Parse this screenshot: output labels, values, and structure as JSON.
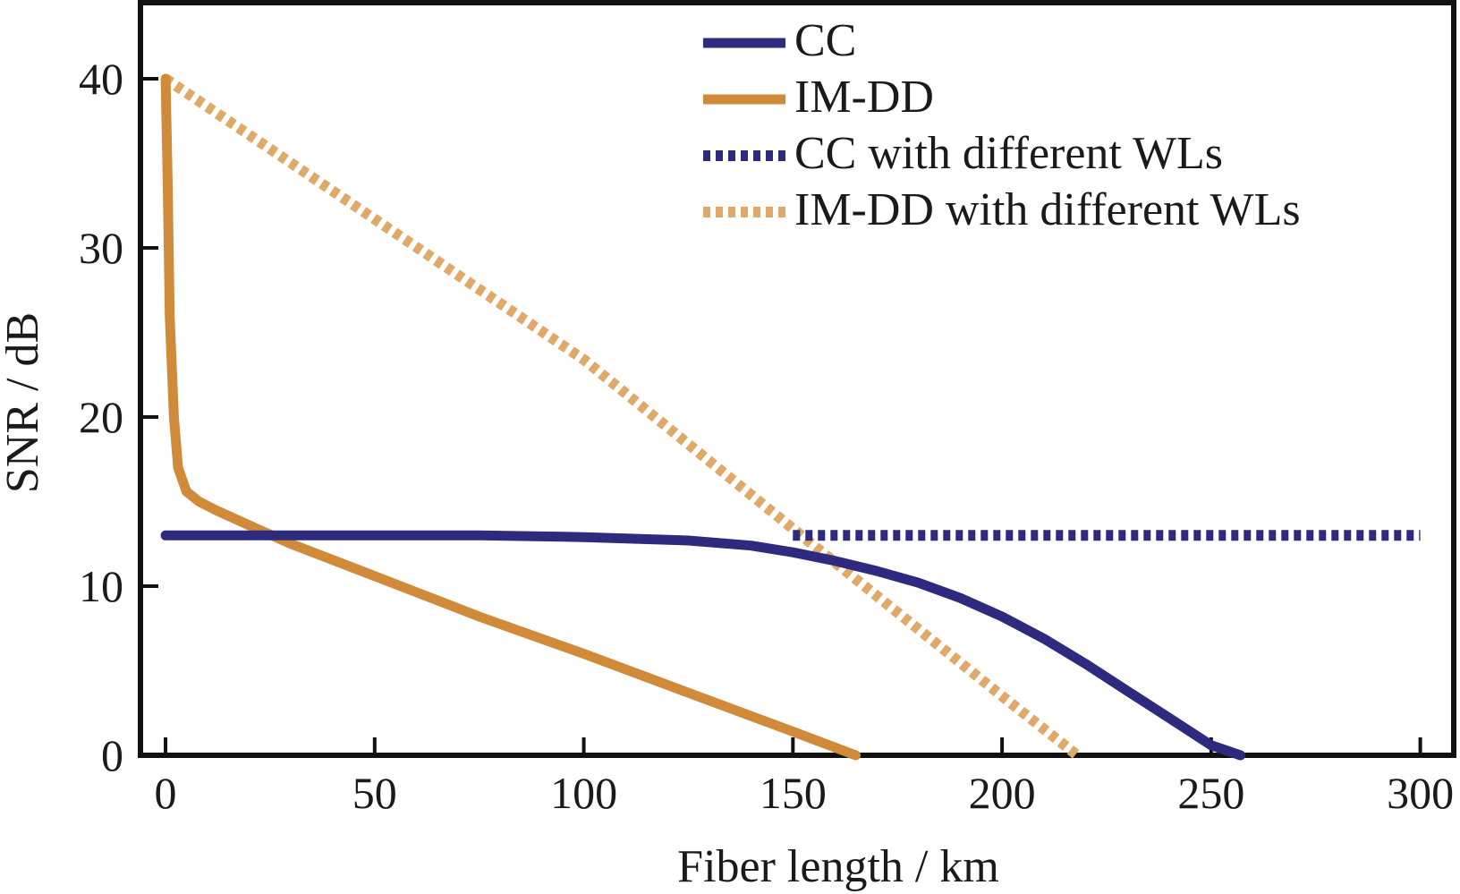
{
  "chart_data": {
    "type": "line",
    "title": "",
    "xlabel": "Fiber length / km",
    "ylabel": "SNR / dB",
    "xlim": [
      -6,
      308
    ],
    "ylim": [
      0,
      44.5
    ],
    "xticks": [
      0,
      50,
      100,
      150,
      200,
      250,
      300
    ],
    "yticks": [
      0,
      10,
      20,
      30,
      40
    ],
    "grid": false,
    "legend_position": "top-right",
    "series": [
      {
        "name": "CC",
        "style": "solid",
        "color": "#2e2a7e",
        "x": [
          0,
          25,
          50,
          75,
          100,
          125,
          140,
          150,
          160,
          170,
          180,
          190,
          200,
          210,
          220,
          230,
          240,
          250,
          257
        ],
        "y": [
          13.0,
          13.0,
          13.0,
          13.0,
          12.9,
          12.7,
          12.4,
          12.0,
          11.5,
          10.9,
          10.2,
          9.3,
          8.2,
          6.9,
          5.4,
          3.8,
          2.2,
          0.6,
          0
        ]
      },
      {
        "name": "IM-DD",
        "style": "solid",
        "color": "#cf8a3a",
        "x": [
          0,
          0.5,
          1,
          2,
          3,
          5,
          8,
          12,
          20,
          30,
          50,
          75,
          100,
          125,
          150,
          165
        ],
        "y": [
          40,
          34,
          26,
          20,
          17,
          15.6,
          15.0,
          14.5,
          13.6,
          12.5,
          10.6,
          8.2,
          6.0,
          3.7,
          1.4,
          0
        ]
      },
      {
        "name": "CC with different WLs",
        "style": "dotted",
        "color": "#2e2a7e",
        "x": [
          150,
          200,
          250,
          300
        ],
        "y": [
          13.0,
          13.0,
          13.0,
          13.0
        ]
      },
      {
        "name": "IM-DD with different WLs",
        "style": "dotted",
        "color": "#e0a96a",
        "x": [
          0,
          50,
          100,
          150,
          200,
          218
        ],
        "y": [
          40,
          31.7,
          23.4,
          13.4,
          3.5,
          0
        ]
      }
    ]
  }
}
